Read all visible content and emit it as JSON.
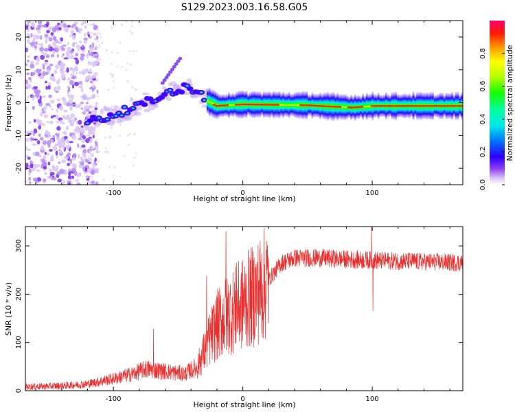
{
  "title": "S129.2023.003.16.58.G05",
  "chart_data": [
    {
      "type": "heatmap",
      "xlabel": "Height of straight line (km)",
      "ylabel": "Frequency (Hz)",
      "xlim": [
        -168,
        170
      ],
      "ylim": [
        -25,
        25
      ],
      "x_ticks": [
        -100,
        0,
        100
      ],
      "y_ticks": [
        -20,
        -10,
        0,
        10,
        20
      ],
      "colorbar": {
        "label": "Normalized spectral amplitude",
        "range": [
          0,
          1
        ],
        "ticks": [
          0.0,
          0.2,
          0.4,
          0.6,
          0.8
        ]
      },
      "features": {
        "noise_region_x": [
          -168,
          -118
        ],
        "ridge_track": [
          {
            "x": -120,
            "f": -5.6
          },
          {
            "x": -105,
            "f": -4.5
          },
          {
            "x": -95,
            "f": -3.0
          },
          {
            "x": -85,
            "f": -1.5
          },
          {
            "x": -75,
            "f": 0.0
          },
          {
            "x": -65,
            "f": 1.5
          },
          {
            "x": -55,
            "f": 3.5
          },
          {
            "x": -45,
            "f": 4.5
          },
          {
            "x": -35,
            "f": 4.0
          },
          {
            "x": -28,
            "f": 0.5
          },
          {
            "x": -20,
            "f": -1.0
          },
          {
            "x": 0,
            "f": -0.5
          },
          {
            "x": 50,
            "f": -0.8
          },
          {
            "x": 85,
            "f": -1.5
          },
          {
            "x": 100,
            "f": -1.0
          },
          {
            "x": 170,
            "f": -1.0
          }
        ],
        "peak_segments_x": [
          [
            -22,
            -12
          ],
          [
            -5,
            28
          ],
          [
            45,
            75
          ],
          [
            82,
            92
          ],
          [
            100,
            170
          ]
        ]
      }
    },
    {
      "type": "line",
      "xlabel": "Height of straight line (km)",
      "ylabel": "SNR (10 * v/v)",
      "xlim": [
        -168,
        170
      ],
      "ylim": [
        0,
        340
      ],
      "x_ticks": [
        -100,
        0,
        100
      ],
      "y_ticks": [
        0,
        100,
        200,
        300
      ],
      "color": "#e8302f",
      "envelope": [
        {
          "x": -168,
          "y": 8
        },
        {
          "x": -140,
          "y": 10
        },
        {
          "x": -120,
          "y": 14
        },
        {
          "x": -100,
          "y": 25
        },
        {
          "x": -85,
          "y": 35
        },
        {
          "x": -75,
          "y": 45
        },
        {
          "x": -60,
          "y": 40
        },
        {
          "x": -45,
          "y": 35
        },
        {
          "x": -35,
          "y": 50
        },
        {
          "x": -30,
          "y": 80
        },
        {
          "x": -25,
          "y": 110
        },
        {
          "x": -20,
          "y": 135
        },
        {
          "x": -15,
          "y": 150
        },
        {
          "x": -10,
          "y": 160
        },
        {
          "x": -5,
          "y": 170
        },
        {
          "x": 0,
          "y": 180
        },
        {
          "x": 10,
          "y": 200
        },
        {
          "x": 20,
          "y": 230
        },
        {
          "x": 30,
          "y": 265
        },
        {
          "x": 40,
          "y": 275
        },
        {
          "x": 60,
          "y": 275
        },
        {
          "x": 80,
          "y": 272
        },
        {
          "x": 100,
          "y": 270
        },
        {
          "x": 130,
          "y": 268
        },
        {
          "x": 170,
          "y": 265
        }
      ],
      "spikes": [
        {
          "x": -69,
          "y": 128
        },
        {
          "x": -28,
          "y": 238
        },
        {
          "x": -13,
          "y": 330
        },
        {
          "x": -5,
          "y": 265
        },
        {
          "x": 99.5,
          "y": 340
        },
        {
          "x": 100.5,
          "y": 165
        }
      ]
    }
  ]
}
